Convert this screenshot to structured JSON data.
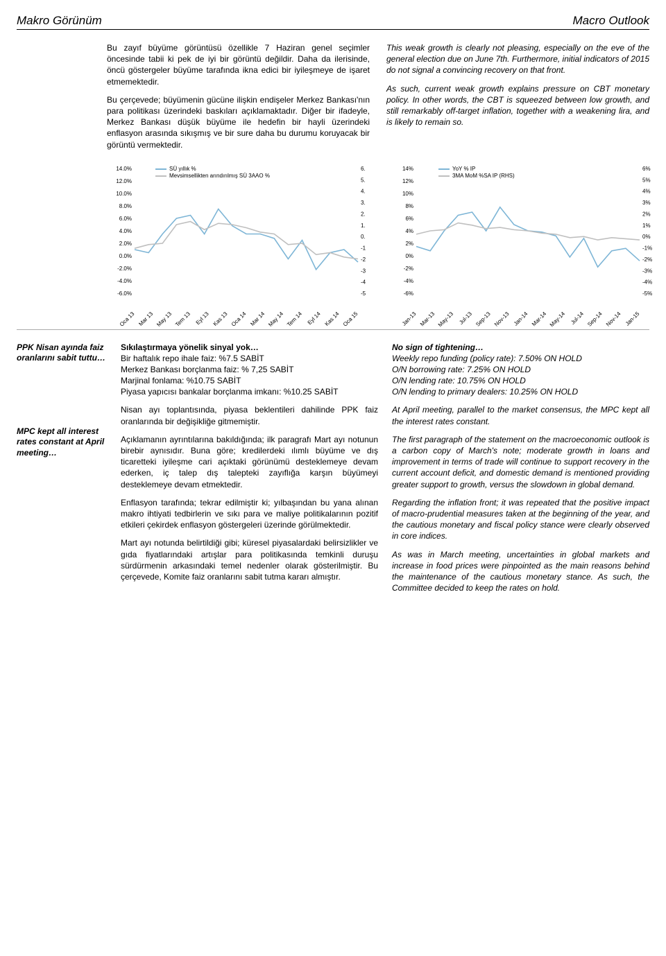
{
  "header": {
    "left": "Makro Görünüm",
    "right": "Macro Outlook"
  },
  "top_left_paras": [
    "Bu zayıf büyüme görüntüsü özellikle 7 Haziran genel seçimler öncesinde tabii ki pek de iyi bir görüntü değildir. Daha da ilerisinde, öncü göstergeler büyüme tarafında ikna edici bir iyileşmeye de işaret etmemektedir.",
    "Bu çerçevede; büyümenin gücüne ilişkin endişeler Merkez Bankası'nın para politikası üzerindeki baskıları açıklamaktadır. Diğer bir ifadeyle, Merkez Bankası düşük büyüme ile hedefin bir hayli üzerindeki enflasyon arasında sıkışmış ve bir sure daha bu durumu koruyacak bir görüntü vermektedir."
  ],
  "top_right_paras": [
    "This weak growth is clearly not pleasing, especially on the eve of the general election due on June 7th. Furthermore, initial indicators of 2015 do not signal a convincing recovery on that front.",
    "As such, current weak growth explains pressure on CBT monetary policy. In other words, the CBT is squeezed between low growth, and still remarkably off-target inflation, together with a weakening lira, and is likely to remain so."
  ],
  "chart_left": {
    "type": "line",
    "legend": [
      "SÜ yıllık %",
      "Mevsimsellikten arındırılmış SÜ 3AAO %"
    ],
    "colors": [
      "#7db5d6",
      "#bfbfbf"
    ],
    "y_left_ticks": [
      "14.0%",
      "12.0%",
      "10.0%",
      "8.0%",
      "6.0%",
      "4.0%",
      "2.0%",
      "0.0%",
      "-2.0%",
      "-4.0%",
      "-6.0%"
    ],
    "y_right_ticks": [
      "6.",
      "5.",
      "4.",
      "3.",
      "2.",
      "1.",
      "0.",
      "-1",
      "-2",
      "-3",
      "-4",
      "-5"
    ],
    "x_labels": [
      "Oca 13",
      "Mar 13",
      "May 13",
      "Tem 13",
      "Eyl 13",
      "Kas 13",
      "Oca 14",
      "Mar 14",
      "May 14",
      "Tem 14",
      "Eyl 14",
      "Kas 14",
      "Oca 15"
    ],
    "series_a": [
      1.0,
      0.5,
      3.5,
      6.0,
      6.5,
      3.5,
      7.5,
      4.8,
      3.5,
      3.5,
      2.8,
      -0.5,
      2.5,
      -2.2,
      0.5,
      1.0,
      -1.0
    ],
    "series_b": [
      1.2,
      1.8,
      2.0,
      5.0,
      5.5,
      4.2,
      5.2,
      5.0,
      4.5,
      3.8,
      3.5,
      1.8,
      2.0,
      0.2,
      0.5,
      -0.2,
      -0.5
    ],
    "ymin": -6,
    "ymax": 14,
    "font_size_axis": 8
  },
  "chart_right": {
    "type": "line",
    "legend": [
      "YoY % IP",
      "3MA MoM %SA IP (RHS)"
    ],
    "colors": [
      "#7db5d6",
      "#bfbfbf"
    ],
    "y_left_ticks": [
      "14%",
      "12%",
      "10%",
      "8%",
      "6%",
      "4%",
      "2%",
      "0%",
      "-2%",
      "-4%",
      "-6%"
    ],
    "y_right_ticks": [
      "6%",
      "5%",
      "4%",
      "3%",
      "2%",
      "1%",
      "0%",
      "-1%",
      "-2%",
      "-3%",
      "-4%",
      "-5%"
    ],
    "x_labels": [
      "Jan-13",
      "Mar-13",
      "May-13",
      "Jul-13",
      "Sep-13",
      "Nov-13",
      "Jan-14",
      "Mar-14",
      "May-14",
      "Jul-14",
      "Sep-14",
      "Nov-14",
      "Jan-15"
    ],
    "series_a": [
      1.5,
      0.8,
      4.0,
      6.5,
      7.0,
      4.0,
      7.8,
      5.0,
      4.0,
      3.8,
      3.2,
      -0.2,
      2.8,
      -1.8,
      0.8,
      1.2,
      -0.8
    ],
    "series_b": [
      0.2,
      0.5,
      0.6,
      1.2,
      1.0,
      0.7,
      0.8,
      0.6,
      0.5,
      0.3,
      0.2,
      -0.1,
      0.0,
      -0.3,
      -0.1,
      -0.2,
      -0.3
    ],
    "ymin_l": -6,
    "ymax_l": 14,
    "ymin_r": -5,
    "ymax_r": 6,
    "font_size_axis": 8
  },
  "sidebar": {
    "tr": "PPK Nisan ayında faiz oranlarını sabit tuttu…",
    "en": "MPC kept all interest rates constant at April meeting…"
  },
  "mid": {
    "title1": "Sıkılaştırmaya yönelik sinyal yok…",
    "block1_lines": [
      "Bir haftalık repo ihale faiz: %7.5 SABİT",
      "Merkez Bankası borçlanma faiz: % 7,25 SABİT",
      "Marjinal fonlama: %10.75 SABİT",
      "Piyasa yapıcısı bankalar borçlanma imkanı: %10.25 SABİT"
    ],
    "paras": [
      "Nisan ayı toplantısında, piyasa beklentileri dahilinde PPK faiz oranlarında bir değişikliğe gitmemiştir.",
      "Açıklamanın ayrıntılarına bakıldığında; ilk paragrafı Mart ayı notunun birebir aynısıdır. Buna göre; kredilerdeki ılımlı büyüme ve dış ticaretteki iyileşme cari açıktaki görünümü desteklemeye devam ederken, iç talep dış talepteki zayıflığa karşın büyümeyi desteklemeye devam etmektedir.",
      "Enflasyon tarafında; tekrar edilmiştir ki; yılbaşından bu yana alınan makro ihtiyati tedbirlerin ve sıkı para ve maliye politikalarının pozitif etkileri çekirdek enflasyon göstergeleri üzerinde görülmektedir.",
      "Mart ayı notunda belirtildiği gibi; küresel piyasalardaki belirsizlikler ve gıda fiyatlarındaki artışlar para politikasında temkinli duruşu sürdürmenin arkasındaki temel nedenler olarak gösterilmiştir. Bu çerçevede, Komite faiz oranlarını sabit tutma kararı almıştır."
    ]
  },
  "right": {
    "title1": "No sign of tightening…",
    "block1_lines": [
      "Weekly repo funding (policy rate): 7.50% ON HOLD",
      "O/N borrowing rate: 7.25% ON HOLD",
      "O/N lending rate: 10.75% ON HOLD",
      "O/N lending to primary dealers: 10.25% ON HOLD"
    ],
    "paras": [
      "At April meeting, parallel to the market consensus, the MPC kept all the interest rates constant.",
      "The first paragraph of the statement on the macroeconomic outlook is a carbon copy of March's note; moderate growth in loans and improvement in terms of trade will continue to support recovery in the current account deficit, and domestic demand is mentioned providing greater support to growth, versus the slowdown in global demand.",
      "Regarding the inflation front; it was repeated that the positive impact of macro-prudential measures taken at the beginning of the year, and the cautious monetary and fiscal policy stance were clearly observed in core indices.",
      "As was in March meeting, uncertainties in global markets and increase in food prices were pinpointed as the main reasons behind the maintenance of the cautious monetary stance. As such, the Committee decided to keep the rates on hold."
    ]
  }
}
